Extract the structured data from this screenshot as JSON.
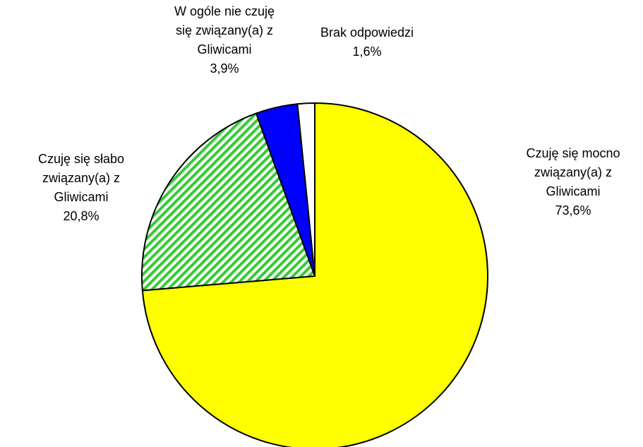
{
  "chart_data": {
    "type": "pie",
    "categories": [
      "Czuję się mocno związany(a) z Gliwicami",
      "Czuję się słabo związany(a) z Gliwicami",
      "W ogóle nie czuję się związany(a) z Gliwicami",
      "Brak odpowiedzi"
    ],
    "values": [
      73.6,
      20.8,
      3.9,
      1.6
    ],
    "value_labels": [
      "73,6%",
      "20,8%",
      "3,9%",
      "1,6%"
    ],
    "colors": [
      "#ffff00",
      "#33cc33",
      "#0000ff",
      "#ffffff"
    ],
    "hatched": [
      false,
      true,
      false,
      false
    ]
  }
}
